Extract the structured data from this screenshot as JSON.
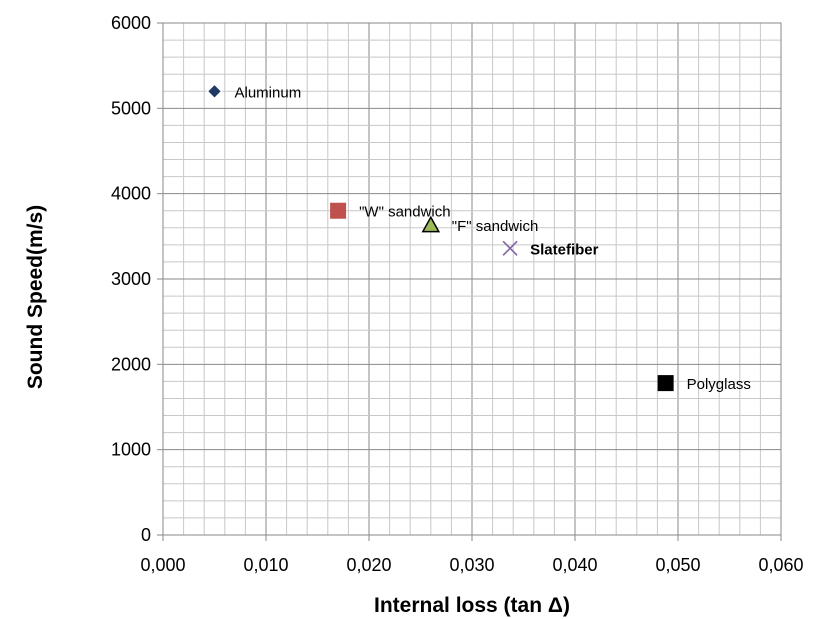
{
  "chart_data": {
    "type": "scatter",
    "title": "",
    "xlabel": "Internal loss (tan Δ)",
    "ylabel": "Sound Speed(m/s)",
    "xlim": [
      0,
      0.06
    ],
    "ylim": [
      0,
      6000
    ],
    "x_ticks": [
      "0,000",
      "0,010",
      "0,020",
      "0,030",
      "0,040",
      "0,050",
      "0,060"
    ],
    "y_ticks": [
      "0",
      "1000",
      "2000",
      "3000",
      "4000",
      "5000",
      "6000"
    ],
    "grid": true,
    "legend": "none",
    "points": [
      {
        "label": "Aluminum",
        "x": 0.005,
        "y": 5200,
        "marker": "diamond",
        "color": "#1f3864"
      },
      {
        "label": "\"W\" sandwich",
        "x": 0.017,
        "y": 3800,
        "marker": "square",
        "color": "#c0504d"
      },
      {
        "label": "\"F\" sandwich",
        "x": 0.026,
        "y": 3630,
        "marker": "triangle",
        "color": "#9bbb59"
      },
      {
        "label": "Slatefiber",
        "x": 0.0337,
        "y": 3360,
        "marker": "x",
        "color": "#8064a2",
        "bold": true
      },
      {
        "label": "Polyglass",
        "x": 0.0488,
        "y": 1780,
        "marker": "square",
        "color": "#000000"
      }
    ]
  }
}
